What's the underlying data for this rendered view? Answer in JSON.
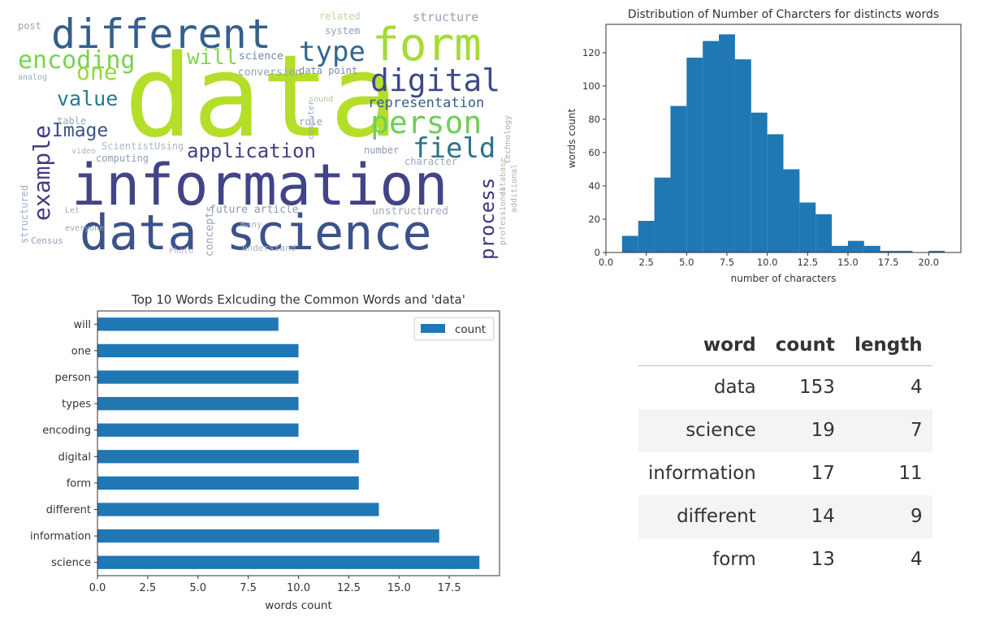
{
  "wordcloud": {
    "words": [
      {
        "text": "data",
        "color": "#b5de2b"
      },
      {
        "text": "information",
        "color": "#414487"
      },
      {
        "text": "data science",
        "color": "#3b528b"
      },
      {
        "text": "different",
        "color": "#355f8d"
      },
      {
        "text": "form",
        "color": "#a5db36"
      },
      {
        "text": "digital",
        "color": "#3e4989"
      },
      {
        "text": "person",
        "color": "#6ece58"
      },
      {
        "text": "field",
        "color": "#2c728e"
      },
      {
        "text": "encoding",
        "color": "#7ad151"
      },
      {
        "text": "type",
        "color": "#31688e"
      },
      {
        "text": "example",
        "color": "#443983"
      },
      {
        "text": "application",
        "color": "#424086"
      },
      {
        "text": "one",
        "color": "#95d840"
      },
      {
        "text": "will",
        "color": "#86d549"
      },
      {
        "text": "value",
        "color": "#2a788e"
      },
      {
        "text": "Image",
        "color": "#3b528b"
      },
      {
        "text": "process",
        "color": "#46337e"
      },
      {
        "text": "representation",
        "color": "#365c8d"
      },
      {
        "text": "structure",
        "color": "#90a4b8"
      },
      {
        "text": "related",
        "color": "#b9d8a0"
      },
      {
        "text": "system",
        "color": "#8f9fb5"
      },
      {
        "text": "science",
        "color": "#6f87a8"
      },
      {
        "text": "conversion",
        "color": "#8fa0b8"
      },
      {
        "text": "data point",
        "color": "#7a8ca8"
      },
      {
        "text": "post",
        "color": "#9aa4b5"
      },
      {
        "text": "table",
        "color": "#a0a8b8"
      },
      {
        "text": "role",
        "color": "#8fa0b5"
      },
      {
        "text": "sound",
        "color": "#b0c8a0"
      },
      {
        "text": "computer",
        "color": "#9aa5b8"
      },
      {
        "text": "number",
        "color": "#8d9cb3"
      },
      {
        "text": "character",
        "color": "#9aa7b8"
      },
      {
        "text": "computing",
        "color": "#8e9eb5"
      },
      {
        "text": "ScientistUsing",
        "color": "#a8b8c8"
      },
      {
        "text": "video",
        "color": "#a8b5c5"
      },
      {
        "text": "unstructured",
        "color": "#a0a8b8"
      },
      {
        "text": "future article",
        "color": "#8d9ab0"
      },
      {
        "text": "concepts",
        "color": "#98a5b8"
      },
      {
        "text": "many",
        "color": "#a8b2c2"
      },
      {
        "text": "Let",
        "color": "#a0aabb"
      },
      {
        "text": "everyone",
        "color": "#9aa8b8"
      },
      {
        "text": "Census",
        "color": "#8f9db3"
      },
      {
        "text": "understand",
        "color": "#a5b0c0"
      },
      {
        "text": "Photo",
        "color": "#b0bac8"
      },
      {
        "text": "structured",
        "color": "#98b0c8"
      },
      {
        "text": "analog",
        "color": "#a0aab8"
      },
      {
        "text": "professional",
        "color": "#a8b2c0"
      },
      {
        "text": "additional",
        "color": "#a8b5c5"
      },
      {
        "text": "database",
        "color": "#b0c0a0"
      },
      {
        "text": "technology",
        "color": "#a0b0c0"
      }
    ]
  },
  "histogram": {
    "chart_data": {
      "type": "bar",
      "title": "Distribution of Number of Charcters for distincts words",
      "xlabel": "number of characters",
      "ylabel": "words count",
      "xlim": [
        0,
        22
      ],
      "ylim": [
        0,
        137
      ],
      "xticks": [
        "0.0",
        "2.5",
        "5.0",
        "7.5",
        "10.0",
        "12.5",
        "15.0",
        "17.5",
        "20.0"
      ],
      "yticks": [
        "0",
        "20",
        "40",
        "60",
        "80",
        "100",
        "120"
      ],
      "bins": [
        {
          "x0": 1.0,
          "x1": 2.0,
          "count": 10
        },
        {
          "x0": 2.0,
          "x1": 3.0,
          "count": 19
        },
        {
          "x0": 3.0,
          "x1": 4.0,
          "count": 45
        },
        {
          "x0": 4.0,
          "x1": 5.0,
          "count": 88
        },
        {
          "x0": 5.0,
          "x1": 6.0,
          "count": 117
        },
        {
          "x0": 6.0,
          "x1": 7.0,
          "count": 127
        },
        {
          "x0": 7.0,
          "x1": 8.0,
          "count": 131
        },
        {
          "x0": 8.0,
          "x1": 9.0,
          "count": 116
        },
        {
          "x0": 9.0,
          "x1": 10.0,
          "count": 84
        },
        {
          "x0": 10.0,
          "x1": 11.0,
          "count": 71
        },
        {
          "x0": 11.0,
          "x1": 12.0,
          "count": 50
        },
        {
          "x0": 12.0,
          "x1": 13.0,
          "count": 30
        },
        {
          "x0": 13.0,
          "x1": 14.0,
          "count": 23
        },
        {
          "x0": 14.0,
          "x1": 15.0,
          "count": 4
        },
        {
          "x0": 15.0,
          "x1": 16.0,
          "count": 7
        },
        {
          "x0": 16.0,
          "x1": 17.0,
          "count": 4
        },
        {
          "x0": 17.0,
          "x1": 18.0,
          "count": 1
        },
        {
          "x0": 18.0,
          "x1": 19.0,
          "count": 1
        },
        {
          "x0": 19.0,
          "x1": 20.0,
          "count": 0
        },
        {
          "x0": 20.0,
          "x1": 21.0,
          "count": 1
        }
      ],
      "color": "#1f77b4"
    }
  },
  "barh": {
    "chart_data": {
      "type": "bar",
      "orientation": "horizontal",
      "title": "Top 10 Words Exlcuding the Common Words and 'data'",
      "xlabel": "words count",
      "ylabel": "",
      "xlim": [
        0,
        20
      ],
      "xticks": [
        "0.0",
        "2.5",
        "5.0",
        "7.5",
        "10.0",
        "12.5",
        "15.0",
        "17.5"
      ],
      "categories": [
        "science",
        "information",
        "different",
        "form",
        "digital",
        "encoding",
        "types",
        "person",
        "one",
        "will"
      ],
      "series": [
        {
          "name": "count",
          "values": [
            19,
            17,
            14,
            13,
            13,
            10,
            10,
            10,
            10,
            9
          ]
        }
      ],
      "legend": "top-right",
      "color": "#1f77b4"
    }
  },
  "table": {
    "chart_data": {
      "type": "table",
      "columns": [
        "word",
        "count",
        "length"
      ],
      "rows": [
        [
          "data",
          "153",
          "4"
        ],
        [
          "science",
          "19",
          "7"
        ],
        [
          "information",
          "17",
          "11"
        ],
        [
          "different",
          "14",
          "9"
        ],
        [
          "form",
          "13",
          "4"
        ]
      ]
    }
  }
}
